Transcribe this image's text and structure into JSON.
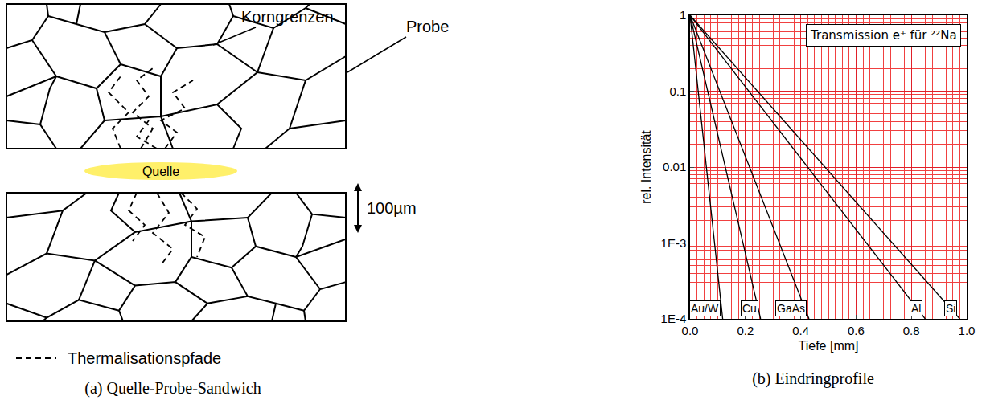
{
  "diagram": {
    "labels": {
      "grain_boundaries": "Korngrenzen",
      "sample": "Probe",
      "source": "Quelle",
      "scale_bar": "100µm",
      "paths": "Thermalisationspfade"
    },
    "caption": "(a) Quelle-Probe-Sandwich"
  },
  "chart_data": {
    "type": "line",
    "annotation": "Transmission e⁺ für ²²Na",
    "x_label": "Tiefe [mm]",
    "y_label": "rel. Intensität",
    "caption": "(b) Eindringprofile",
    "log": "y",
    "grid": true,
    "xlim": [
      0,
      1.0
    ],
    "ylim": [
      0.0001,
      1
    ],
    "xticks": [
      {
        "value": 0,
        "label": "0.0"
      },
      0.2,
      0.4,
      0.6,
      0.8,
      {
        "value": 1.0,
        "label": "1.0"
      }
    ],
    "yticks": [
      {
        "value": 0.0001,
        "label": "1E-4"
      },
      {
        "value": 0.001,
        "label": "1E-3"
      },
      0.01,
      0.1,
      1
    ],
    "series": [
      {
        "name": "Au/W",
        "color": "#000000",
        "x": [
          0,
          0.118
        ],
        "values": [
          1,
          0.0001
        ]
      },
      {
        "name": "Cu",
        "color": "#000000",
        "x": [
          0,
          0.255
        ],
        "values": [
          1,
          0.0001
        ]
      },
      {
        "name": "GaAs",
        "color": "#000000",
        "x": [
          0,
          0.43
        ],
        "values": [
          1,
          0.0001
        ]
      },
      {
        "name": "Al",
        "color": "#000000",
        "x": [
          0,
          0.85
        ],
        "values": [
          1,
          0.0001
        ]
      },
      {
        "name": "Si",
        "color": "#000000",
        "x": [
          0,
          0.975
        ],
        "values": [
          1,
          0.0001
        ]
      }
    ]
  }
}
